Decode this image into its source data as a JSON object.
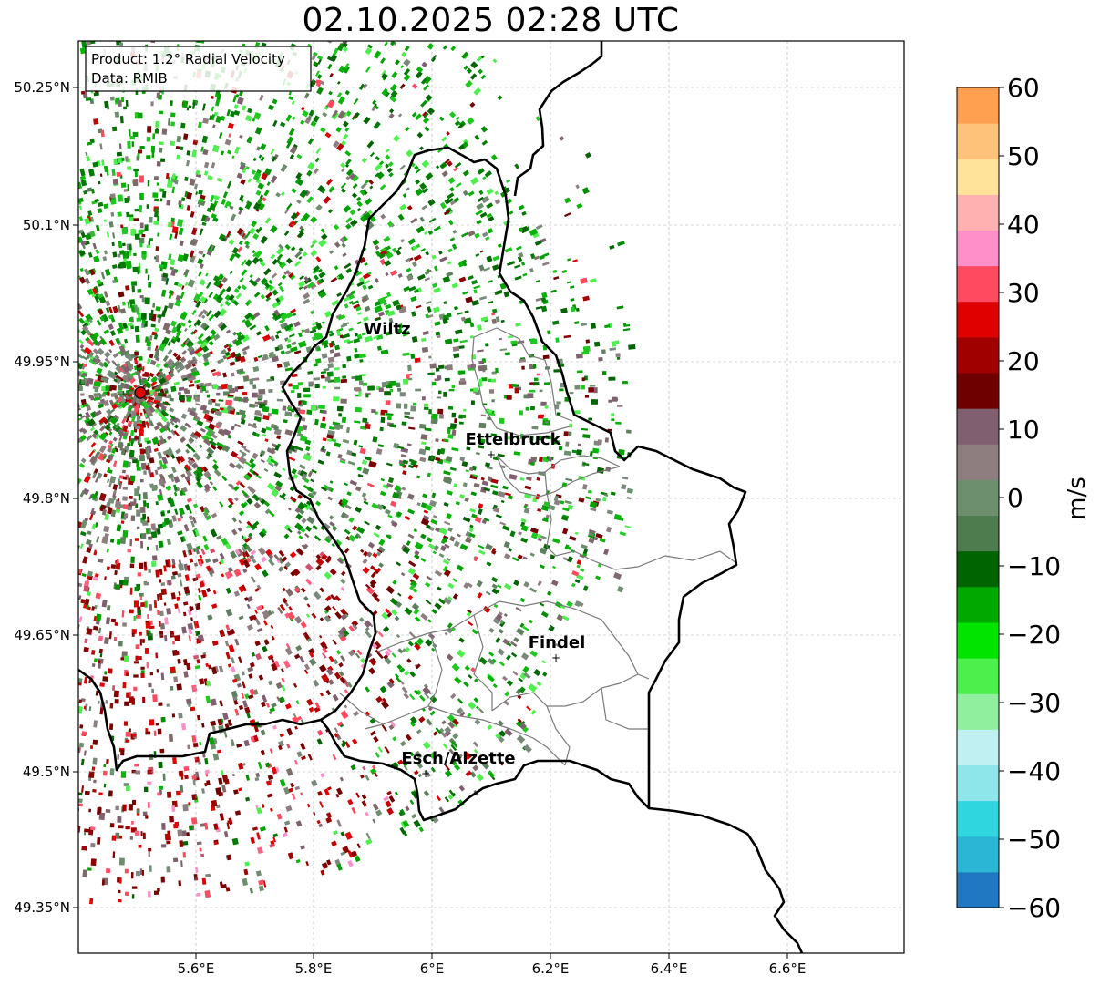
{
  "title": "02.10.2025 02:28 UTC",
  "info_box": {
    "product": "Product: 1.2° Radial Velocity",
    "data": "Data: RMIB"
  },
  "map": {
    "x_ticks": [
      "5.6°E",
      "5.8°E",
      "6°E",
      "6.2°E",
      "6.4°E",
      "6.6°E"
    ],
    "y_ticks": [
      "50.25°N",
      "50.1°N",
      "49.95°N",
      "49.8°N",
      "49.65°N",
      "49.5°N",
      "49.35°N"
    ],
    "cities": [
      {
        "name": "Wiltz"
      },
      {
        "name": "Ettelbruck"
      },
      {
        "name": "Findel"
      },
      {
        "name": "Esch/Alzette"
      }
    ],
    "radar_site": "radar-location-marker"
  },
  "colorbar": {
    "label": "m/s",
    "ticks": [
      "60",
      "50",
      "40",
      "30",
      "20",
      "10",
      "0",
      "−10",
      "−20",
      "−30",
      "−40",
      "−50",
      "−60"
    ],
    "vmin": -60,
    "vmax": 60,
    "colors": [
      "#1f78c1",
      "#2cb6d6",
      "#2fd6e0",
      "#8fe6ea",
      "#c0f0f2",
      "#8fef9f",
      "#4cef4c",
      "#00e400",
      "#00a800",
      "#006400",
      "#4e7c4e",
      "#6e8f6e",
      "#8e7e80",
      "#806070",
      "#6e0000",
      "#a00000",
      "#e00000",
      "#ff4a60",
      "#ff8fc8",
      "#ffb0b0",
      "#ffe39a",
      "#ffc27a",
      "#ffa050"
    ]
  }
}
